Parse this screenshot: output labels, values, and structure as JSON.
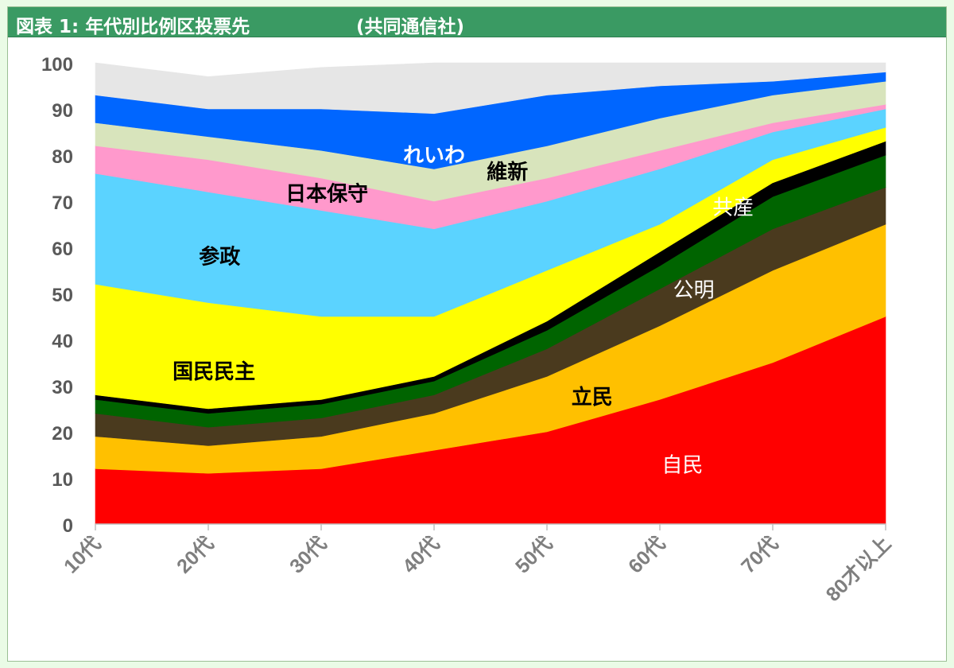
{
  "chart_data": {
    "type": "area",
    "stacked": true,
    "title": "図表 1: 年代別比例区投票先",
    "source": "(共同通信社)",
    "xlabel": "",
    "ylabel": "",
    "ylim": [
      0,
      100
    ],
    "yticks": [
      "0",
      "10",
      "20",
      "30",
      "40",
      "50",
      "60",
      "70",
      "80",
      "90",
      "100"
    ],
    "categories": [
      "10代",
      "20代",
      "30代",
      "40代",
      "50代",
      "60代",
      "70代",
      "80才以上"
    ],
    "grid": false,
    "legend": "none",
    "series": [
      {
        "name": "自民",
        "color": "#ff0000",
        "label_color": "#ffffff",
        "values": [
          12,
          11,
          12,
          16,
          20,
          27,
          35,
          45
        ]
      },
      {
        "name": "立民",
        "color": "#ffc000",
        "label_color": "#000000",
        "values": [
          7,
          6,
          7,
          8,
          12,
          16,
          20,
          20
        ]
      },
      {
        "name": "公明",
        "color": "#4a3a1e",
        "label_color": "#ffffff",
        "values": [
          5,
          4,
          4,
          4,
          6,
          8,
          9,
          8
        ]
      },
      {
        "name": "共産",
        "color": "#006400",
        "label_color": "#ffffff",
        "values": [
          3,
          3,
          3,
          3,
          4,
          5,
          7,
          7
        ]
      },
      {
        "name": "",
        "color": "#000000",
        "label_color": "#ffffff",
        "values": [
          1,
          1,
          1,
          1,
          2,
          3,
          3,
          3
        ]
      },
      {
        "name": "国民民主",
        "color": "#ffff00",
        "label_color": "#000000",
        "values": [
          24,
          23,
          18,
          13,
          11,
          6,
          5,
          3
        ]
      },
      {
        "name": "参政",
        "color": "#5bd3ff",
        "label_color": "#000000",
        "values": [
          24,
          24,
          23,
          19,
          15,
          12,
          6,
          4
        ]
      },
      {
        "name": "日本保守",
        "color": "#ff99cc",
        "label_color": "#000000",
        "values": [
          6,
          7,
          7,
          6,
          5,
          4,
          2,
          1
        ]
      },
      {
        "name": "維新",
        "color": "#d8e4bc",
        "label_color": "#000000",
        "values": [
          5,
          5,
          6,
          7,
          7,
          7,
          6,
          5
        ]
      },
      {
        "name": "れいわ",
        "color": "#0066ff",
        "label_color": "#ffffff",
        "values": [
          6,
          6,
          9,
          12,
          11,
          7,
          3,
          2
        ]
      },
      {
        "name": "",
        "color": "#e6e6e6",
        "label_color": "#000000",
        "values": [
          7,
          7,
          9,
          11,
          7,
          5,
          4,
          2
        ]
      }
    ]
  }
}
